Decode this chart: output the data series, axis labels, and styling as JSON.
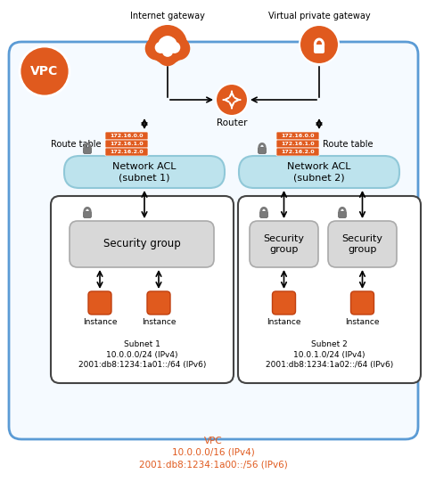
{
  "bg_color": "#ffffff",
  "vpc_border_color": "#5b9bd5",
  "orange": "#e05a1e",
  "light_blue": "#bde3ed",
  "light_gray": "#d4d4d4",
  "dark_gray": "#666666",
  "text_orange": "#e05a1e",
  "title": "VPC",
  "internet_gateway_label": "Internet gateway",
  "vpg_label": "Virtual private gateway",
  "router_label": "Router",
  "route_table_label": "Route table",
  "nacl1_label": "Network ACL\n(subnet 1)",
  "nacl2_label": "Network ACL\n(subnet 2)",
  "sg_label": "Security group",
  "sg_label2": "Security\ngroup",
  "instance_label": "Instance",
  "subnet1_label": "Subnet 1\n10.0.0.0/24 (IPv4)\n2001:db8:1234:1a01::/64 (IPv6)",
  "subnet2_label": "Subnet 2\n10.0.1.0/24 (IPv4)\n2001:db8:1234:1a02::/64 (IPv6)",
  "vpc_bottom_label": "VPC\n10.0.0.0/16 (IPv4)\n2001:db8:1234:1a00::/56 (IPv6)",
  "route_entries": [
    "172.16.0.0",
    "172.16.1.0",
    "172.16.2.0"
  ]
}
